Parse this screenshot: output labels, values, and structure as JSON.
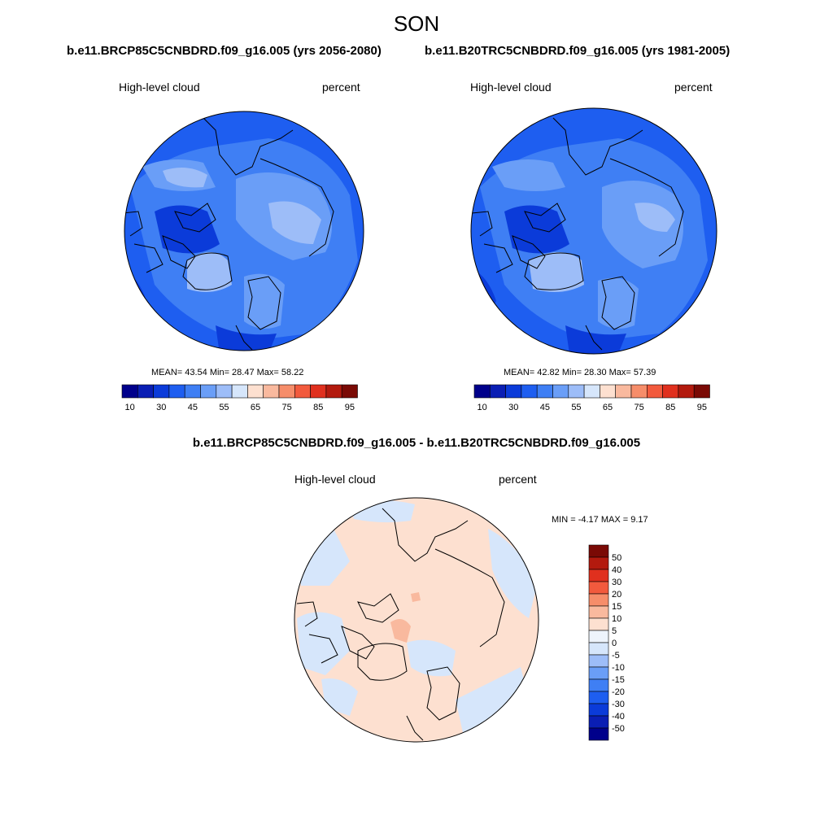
{
  "main_title": "SON",
  "panels": [
    {
      "title": "b.e11.BRCP85C5CNBDRD.f09_g16.005 (yrs 2056-2080)",
      "variable": "High-level cloud",
      "units": "percent",
      "stats": {
        "mean": "43.54",
        "min": "28.47",
        "max": "58.22"
      },
      "stats_text": "MEAN=  43.54  Min=  28.47  Max=  58.22"
    },
    {
      "title": "b.e11.B20TRC5CNBDRD.f09_g16.005 (yrs 1981-2005)",
      "variable": "High-level cloud",
      "units": "percent",
      "stats": {
        "mean": "42.82",
        "min": "28.30",
        "max": "57.39"
      },
      "stats_text": "MEAN=  42.82  Min=  28.30  Max=  57.39"
    }
  ],
  "difference": {
    "title": "b.e11.BRCP85C5CNBDRD.f09_g16.005 - b.e11.B20TRC5CNBDRD.f09_g16.005",
    "variable": "High-level cloud",
    "units": "percent",
    "minmax_text": "MIN =  -4.17 MAX =   9.17",
    "min": -4.17,
    "max": 9.17
  },
  "colorbar_horizontal": {
    "tick_labels": [
      "10",
      "30",
      "45",
      "55",
      "65",
      "75",
      "85",
      "95"
    ],
    "colors": [
      "#00008b",
      "#0a1eb4",
      "#0b3bd9",
      "#1e5ef0",
      "#3f7ff4",
      "#6a9ef7",
      "#9dbdf8",
      "#d6e6fb",
      "#fde0d0",
      "#f9b99e",
      "#f68d6a",
      "#f25a3d",
      "#e0301e",
      "#b31a0e",
      "#7a0a05"
    ]
  },
  "colorbar_vertical": {
    "tick_labels": [
      "50",
      "40",
      "30",
      "20",
      "15",
      "10",
      "5",
      "0",
      "-5",
      "-10",
      "-15",
      "-20",
      "-30",
      "-40",
      "-50"
    ],
    "colors": [
      "#7a0a05",
      "#b31a0e",
      "#e0301e",
      "#f25a3d",
      "#f68d6a",
      "#f9b99e",
      "#fde0d0",
      "#eef4fc",
      "#d6e6fb",
      "#9dbdf8",
      "#6a9ef7",
      "#3f7ff4",
      "#1e5ef0",
      "#0b3bd9",
      "#0a1eb4",
      "#00008b"
    ]
  }
}
